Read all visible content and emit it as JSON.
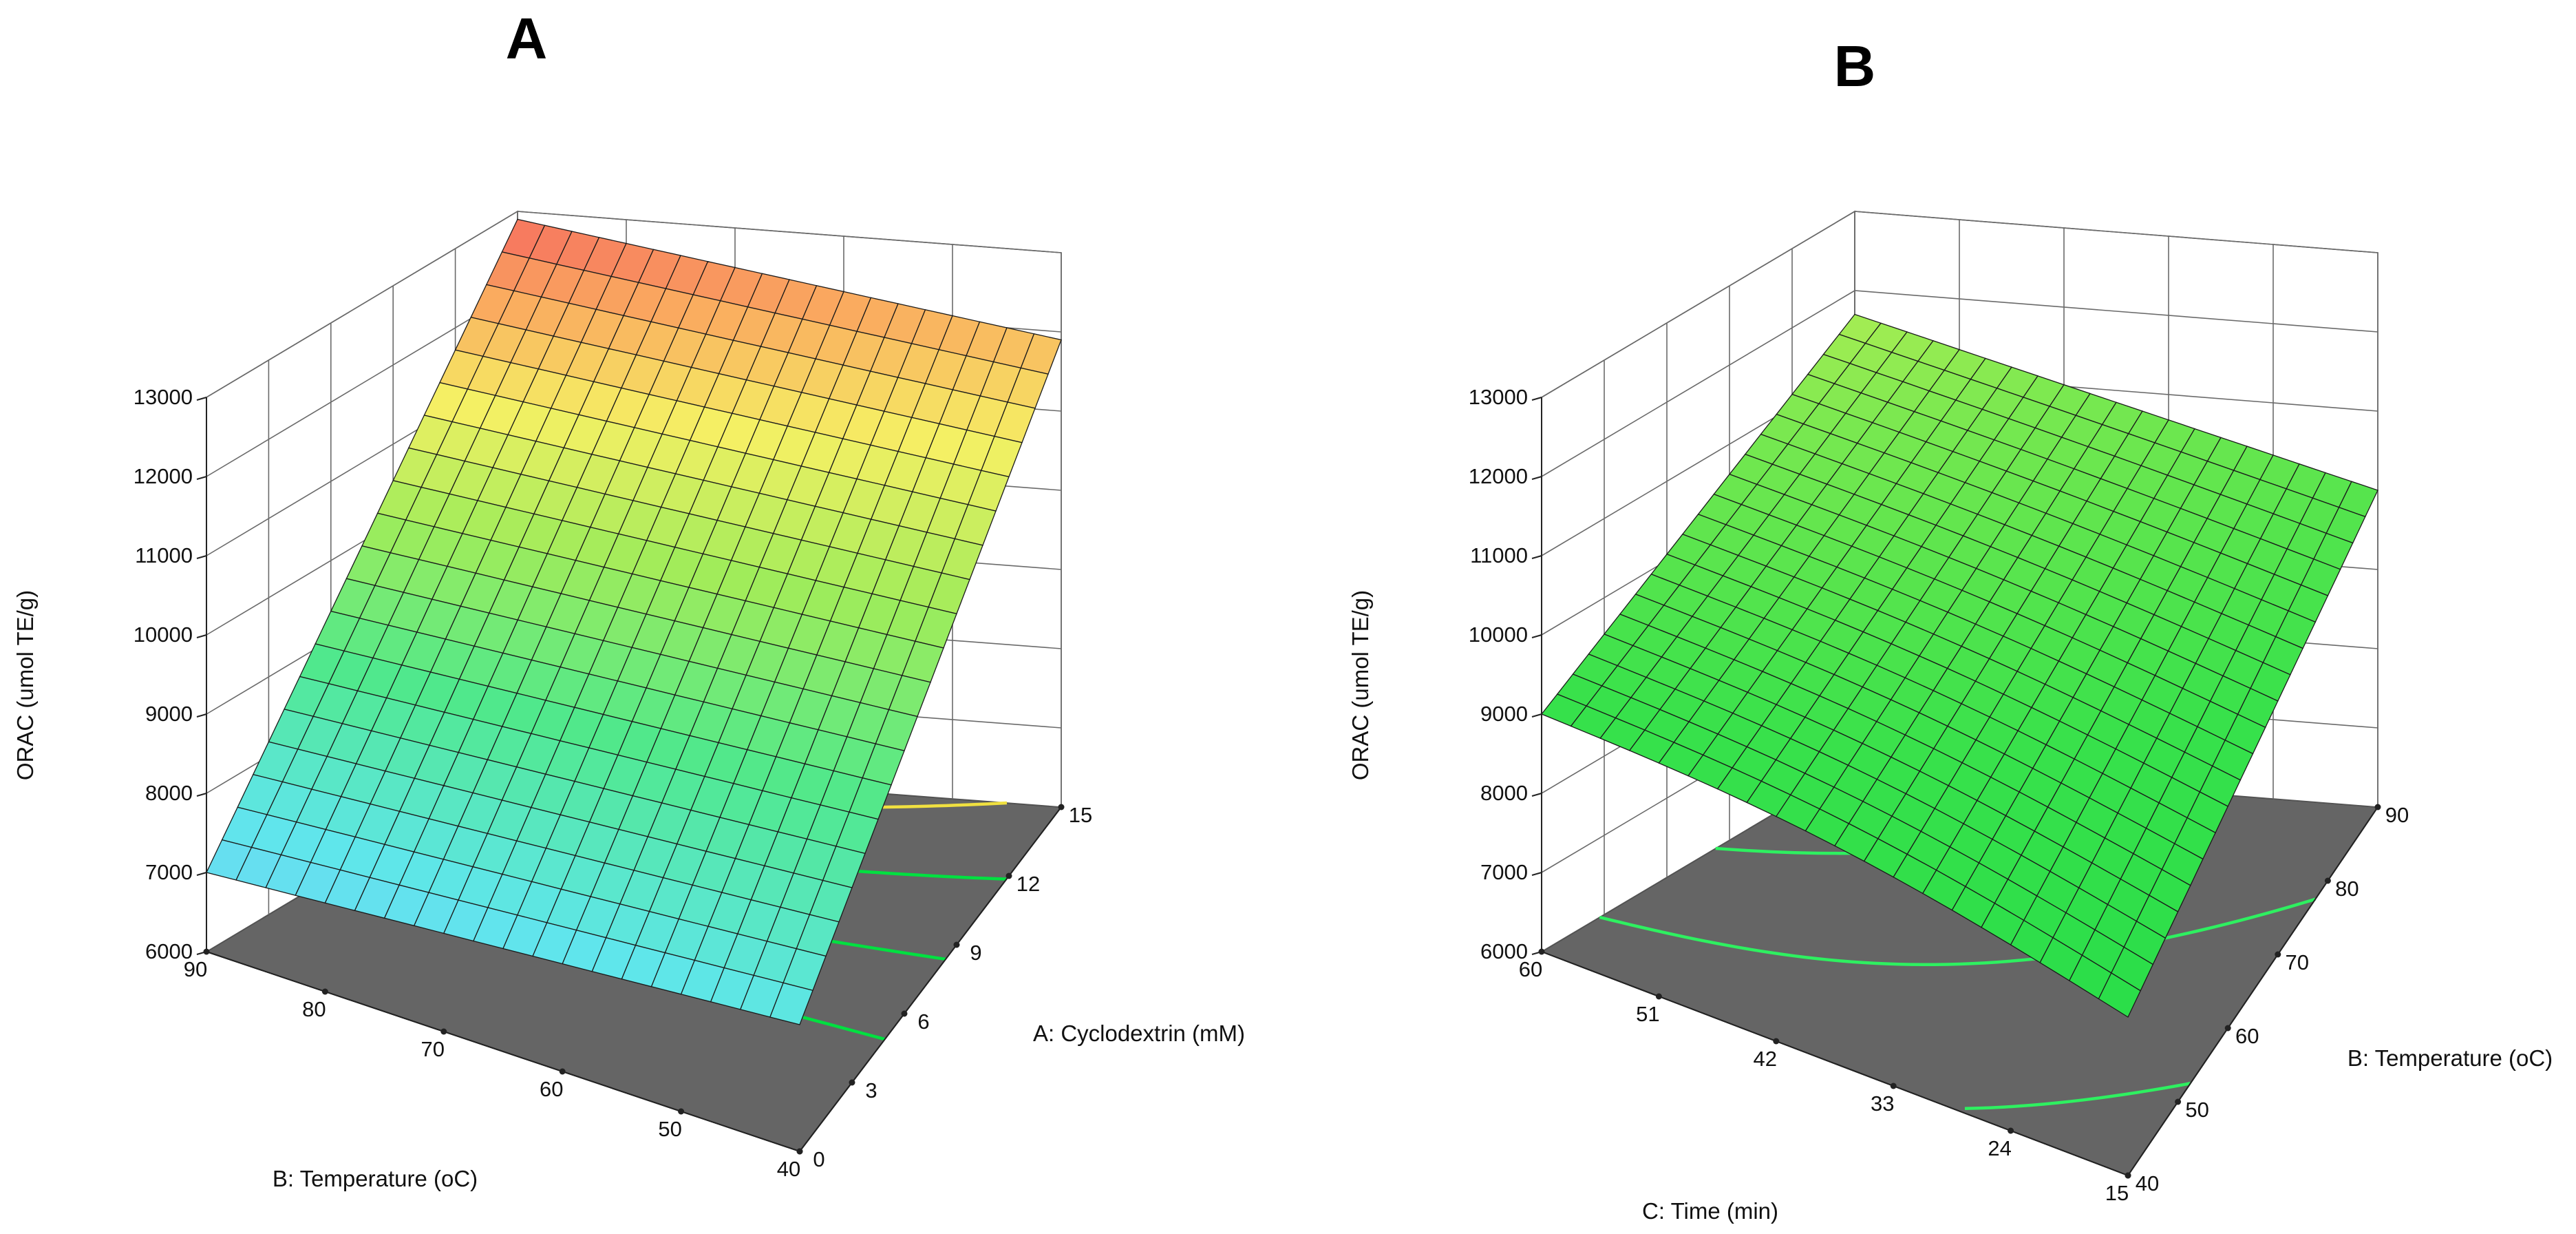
{
  "chart_data": [
    {
      "type": "surface3d",
      "title": "A",
      "zlabel": "ORAC (umol TE/g)",
      "xlabel": "B: Temperature (oC)",
      "ylabel": "A: Cyclodextrin (mM)",
      "zlim": [
        6000,
        13000
      ],
      "z_ticks": [
        "6000",
        "7000",
        "8000",
        "9000",
        "10000",
        "11000",
        "12000",
        "13000"
      ],
      "x_range": [
        40,
        90
      ],
      "x_ticks": [
        "40",
        "50",
        "60",
        "70",
        "80",
        "90"
      ],
      "y_range": [
        0,
        15
      ],
      "y_ticks": [
        "0",
        "3",
        "6",
        "9",
        "12",
        "15"
      ],
      "corner_values": {
        "temp40_cd0": 7600,
        "temp40_cd15": 11900,
        "temp90_cd0": 7000,
        "temp90_cd15": 12900
      },
      "grid_divisions": 20,
      "colormap": "blue-cyan-green-yellow-red",
      "floor_contours": [
        {
          "level": 7000,
          "color": "#00d8f0"
        },
        {
          "level": 9000,
          "color": "#00e040"
        },
        {
          "level": 10000,
          "color": "#00e040"
        },
        {
          "level": 11000,
          "color": "#00e040"
        },
        {
          "level": 12000,
          "color": "#f0e040"
        }
      ]
    },
    {
      "type": "surface3d",
      "title": "B",
      "zlabel": "ORAC (umol TE/g)",
      "xlabel": "C: Time (min)",
      "ylabel": "B: Temperature (oC)",
      "zlim": [
        6000,
        13000
      ],
      "z_ticks": [
        "6000",
        "7000",
        "8000",
        "9000",
        "10000",
        "11000",
        "12000",
        "13000"
      ],
      "x_range": [
        15,
        60
      ],
      "x_ticks": [
        "15",
        "24",
        "33",
        "42",
        "51",
        "60"
      ],
      "y_range": [
        40,
        90
      ],
      "y_ticks": [
        "40",
        "50",
        "60",
        "70",
        "80",
        "90"
      ],
      "corner_values": {
        "time15_temp40": 8000,
        "time15_temp90": 10000,
        "time60_temp40": 9000,
        "time60_temp90": 11700
      },
      "grid_divisions": 20,
      "colormap": "green-yellow",
      "floor_contours": [
        {
          "level": 8500,
          "color": "#2ef060"
        },
        {
          "level": 9500,
          "color": "#2ef060"
        },
        {
          "level": 10500,
          "color": "#2ef060"
        }
      ]
    }
  ]
}
